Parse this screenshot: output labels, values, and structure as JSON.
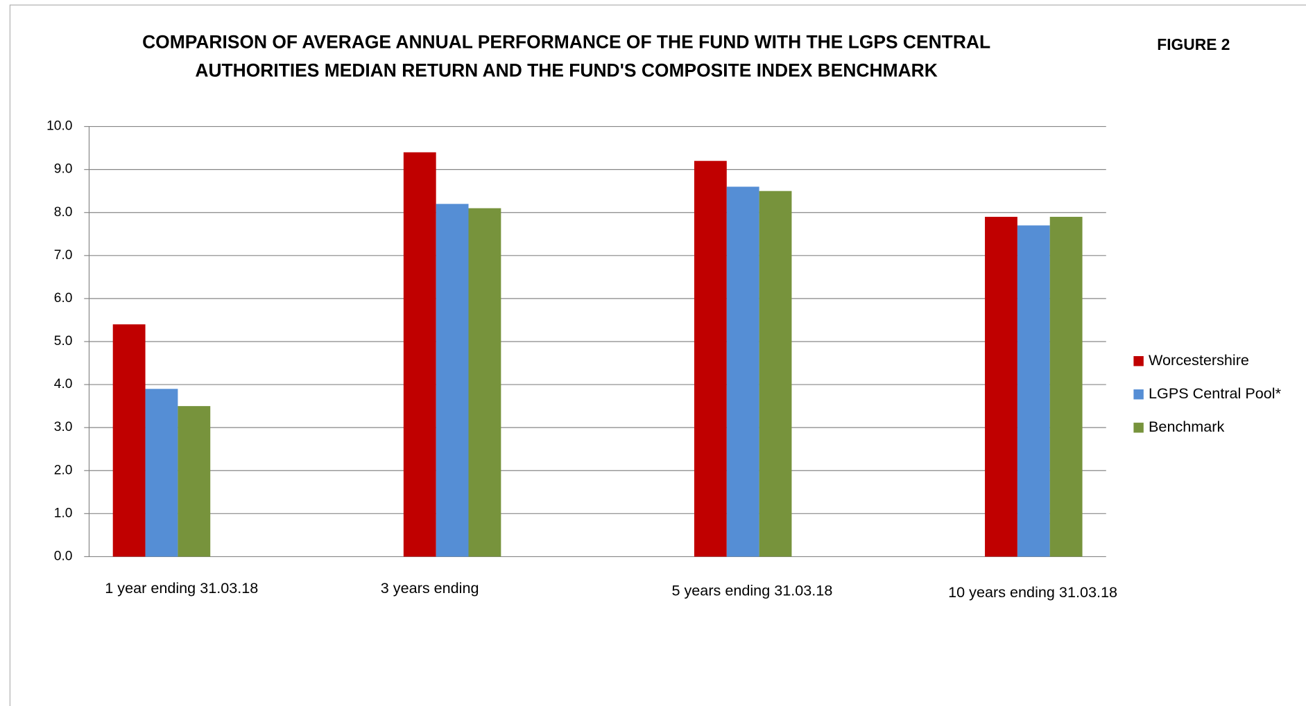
{
  "chart_data": {
    "type": "bar",
    "title": [
      "COMPARISON OF AVERAGE ANNUAL PERFORMANCE OF THE FUND WITH THE LGPS CENTRAL",
      "AUTHORITIES MEDIAN RETURN AND THE FUND'S COMPOSITE INDEX BENCHMARK"
    ],
    "annotation": "FIGURE 2",
    "categories": [
      "1 year ending 31.03.18",
      "3 years ending",
      "5 years ending 31.03.18",
      "10 years ending 31.03.18"
    ],
    "series": [
      {
        "name": "Worcestershire",
        "color": "#c00000",
        "values": [
          5.4,
          9.4,
          9.2,
          7.9
        ]
      },
      {
        "name": "LGPS Central Pool*",
        "color": "#558ed5",
        "values": [
          3.9,
          8.2,
          8.6,
          7.7
        ]
      },
      {
        "name": "Benchmark",
        "color": "#77933c",
        "values": [
          3.5,
          8.1,
          8.5,
          7.9
        ]
      }
    ],
    "ylim": [
      0,
      10
    ],
    "yticks": [
      {
        "value": 0,
        "label": "0.0"
      },
      {
        "value": 1,
        "label": "1.0"
      },
      {
        "value": 2,
        "label": "2.0"
      },
      {
        "value": 3,
        "label": "3.0"
      },
      {
        "value": 4,
        "label": "4.0"
      },
      {
        "value": 5,
        "label": "5.0"
      },
      {
        "value": 6,
        "label": "6.0"
      },
      {
        "value": 7,
        "label": "7.0"
      },
      {
        "value": 8,
        "label": "8.0"
      },
      {
        "value": 9,
        "label": "9.0"
      },
      {
        "value": 10,
        "label": "10.0"
      }
    ],
    "grid": true,
    "legend": "right"
  }
}
